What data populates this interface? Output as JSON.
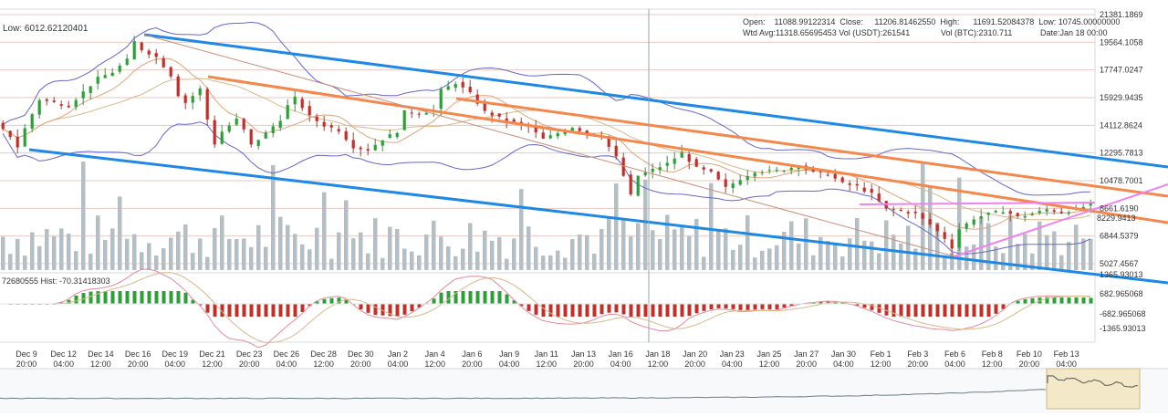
{
  "header": {
    "low_label": "Low: 6012.62120401",
    "line1": "Open:    11088.99122314  Close:     11206.81462550  High:      11691.52084378  Low: 10745.00000000",
    "wtd_line": "Wtd Avg:11318.65695453  Vol (USDT):261541",
    "vol_btc": "Vol (BTC):2310.711",
    "date": "Date:Jan 18 00:00"
  },
  "chart_data": {
    "type": "candlestick",
    "price_axis_ticks": [
      "21381.1869",
      "19564.1058",
      "17747.0247",
      "15929.9435",
      "14112.8624",
      "12295.7813",
      "10478.7001",
      "8661.6190",
      "6844.5379",
      "5027.4567"
    ],
    "price_axis_values": [
      21381.1869,
      19564.1058,
      17747.0247,
      15929.9435,
      14112.8624,
      12295.7813,
      10478.7001,
      8661.619,
      6844.5379,
      5027.4567
    ],
    "current_price_label": "8229.9413",
    "macd_label": "72680555  Hist: -70.31418303",
    "macd_axis_ticks": [
      "1365.93013",
      "682.965068",
      "-682.965068",
      "-1365.93013"
    ],
    "x_ticks": [
      {
        "d": "Dec 9",
        "t": "20:00"
      },
      {
        "d": "Dec 12",
        "t": "04:00"
      },
      {
        "d": "Dec 14",
        "t": "12:00"
      },
      {
        "d": "Dec 16",
        "t": "20:00"
      },
      {
        "d": "Dec 19",
        "t": "04:00"
      },
      {
        "d": "Dec 21",
        "t": "12:00"
      },
      {
        "d": "Dec 23",
        "t": "20:00"
      },
      {
        "d": "Dec 26",
        "t": "04:00"
      },
      {
        "d": "Dec 28",
        "t": "12:00"
      },
      {
        "d": "Dec 30",
        "t": "20:00"
      },
      {
        "d": "Jan 2",
        "t": "04:00"
      },
      {
        "d": "Jan 4",
        "t": "12:00"
      },
      {
        "d": "Jan 6",
        "t": "20:00"
      },
      {
        "d": "Jan 9",
        "t": "04:00"
      },
      {
        "d": "Jan 11",
        "t": "12:00"
      },
      {
        "d": "Jan 13",
        "t": "20:00"
      },
      {
        "d": "Jan 16",
        "t": "04:00"
      },
      {
        "d": "Jan 18",
        "t": "12:00"
      },
      {
        "d": "Jan 20",
        "t": "20:00"
      },
      {
        "d": "Jan 23",
        "t": "04:00"
      },
      {
        "d": "Jan 25",
        "t": "12:00"
      },
      {
        "d": "Jan 27",
        "t": "20:00"
      },
      {
        "d": "Jan 30",
        "t": "04:00"
      },
      {
        "d": "Feb 1",
        "t": "12:00"
      },
      {
        "d": "Feb 3",
        "t": "20:00"
      },
      {
        "d": "Feb 6",
        "t": "04:00"
      },
      {
        "d": "Feb 8",
        "t": "12:00"
      },
      {
        "d": "Feb 10",
        "t": "20:00"
      },
      {
        "d": "Feb 13",
        "t": "04:00"
      }
    ],
    "price_path": [
      {
        "i": 0,
        "p": 14200
      },
      {
        "i": 2,
        "p": 13400
      },
      {
        "i": 3,
        "p": 12700
      },
      {
        "i": 4,
        "p": 13900
      },
      {
        "i": 6,
        "p": 15800
      },
      {
        "i": 8,
        "p": 15600
      },
      {
        "i": 10,
        "p": 15400
      },
      {
        "i": 12,
        "p": 16300
      },
      {
        "i": 14,
        "p": 17200
      },
      {
        "i": 16,
        "p": 17600
      },
      {
        "i": 18,
        "p": 18400
      },
      {
        "i": 19,
        "p": 19600
      },
      {
        "i": 20,
        "p": 19100
      },
      {
        "i": 22,
        "p": 18600
      },
      {
        "i": 24,
        "p": 17400
      },
      {
        "i": 25,
        "p": 16100
      },
      {
        "i": 26,
        "p": 15600
      },
      {
        "i": 28,
        "p": 16500
      },
      {
        "i": 29,
        "p": 14500
      },
      {
        "i": 30,
        "p": 12900
      },
      {
        "i": 31,
        "p": 13700
      },
      {
        "i": 33,
        "p": 14500
      },
      {
        "i": 34,
        "p": 13800
      },
      {
        "i": 35,
        "p": 12800
      },
      {
        "i": 37,
        "p": 13600
      },
      {
        "i": 39,
        "p": 14500
      },
      {
        "i": 40,
        "p": 15400
      },
      {
        "i": 41,
        "p": 15900
      },
      {
        "i": 43,
        "p": 14700
      },
      {
        "i": 45,
        "p": 14100
      },
      {
        "i": 47,
        "p": 13800
      },
      {
        "i": 49,
        "p": 12700
      },
      {
        "i": 51,
        "p": 12500
      },
      {
        "i": 53,
        "p": 13200
      },
      {
        "i": 55,
        "p": 13700
      },
      {
        "i": 56,
        "p": 15000
      },
      {
        "i": 58,
        "p": 14900
      },
      {
        "i": 60,
        "p": 15100
      },
      {
        "i": 61,
        "p": 16400
      },
      {
        "i": 63,
        "p": 16900
      },
      {
        "i": 65,
        "p": 16200
      },
      {
        "i": 67,
        "p": 15000
      },
      {
        "i": 69,
        "p": 14600
      },
      {
        "i": 71,
        "p": 14300
      },
      {
        "i": 73,
        "p": 14000
      },
      {
        "i": 75,
        "p": 13200
      },
      {
        "i": 77,
        "p": 13600
      },
      {
        "i": 79,
        "p": 14000
      },
      {
        "i": 81,
        "p": 13600
      },
      {
        "i": 83,
        "p": 13400
      },
      {
        "i": 85,
        "p": 12000
      },
      {
        "i": 86,
        "p": 10800
      },
      {
        "i": 87,
        "p": 9500
      },
      {
        "i": 88,
        "p": 10800
      },
      {
        "i": 90,
        "p": 11200
      },
      {
        "i": 92,
        "p": 11600
      },
      {
        "i": 94,
        "p": 12300
      },
      {
        "i": 96,
        "p": 11300
      },
      {
        "i": 98,
        "p": 11000
      },
      {
        "i": 100,
        "p": 10000
      },
      {
        "i": 102,
        "p": 10600
      },
      {
        "i": 104,
        "p": 11100
      },
      {
        "i": 106,
        "p": 11100
      },
      {
        "i": 108,
        "p": 11200
      },
      {
        "i": 110,
        "p": 11500
      },
      {
        "i": 112,
        "p": 11000
      },
      {
        "i": 114,
        "p": 10900
      },
      {
        "i": 116,
        "p": 10300
      },
      {
        "i": 118,
        "p": 10100
      },
      {
        "i": 120,
        "p": 9600
      },
      {
        "i": 122,
        "p": 8600
      },
      {
        "i": 124,
        "p": 8500
      },
      {
        "i": 126,
        "p": 8300
      },
      {
        "i": 128,
        "p": 7600
      },
      {
        "i": 130,
        "p": 6700
      },
      {
        "i": 131,
        "p": 6100
      },
      {
        "i": 132,
        "p": 7300
      },
      {
        "i": 134,
        "p": 8000
      },
      {
        "i": 136,
        "p": 8300
      },
      {
        "i": 138,
        "p": 8500
      },
      {
        "i": 140,
        "p": 8100
      },
      {
        "i": 142,
        "p": 8300
      },
      {
        "i": 144,
        "p": 8600
      },
      {
        "i": 146,
        "p": 8400
      },
      {
        "i": 148,
        "p": 8600
      },
      {
        "i": 150,
        "p": 8900
      }
    ],
    "colors": {
      "up": "#2e9e3a",
      "down": "#c0302a",
      "channel": "#1e88e5",
      "orange": "#f4874b",
      "pink": "#ee82ee",
      "volume": "#b3bfc4",
      "bollinger": "#6666cc"
    }
  },
  "navigator": {
    "colors": {
      "window": "#f3e8c8"
    }
  }
}
